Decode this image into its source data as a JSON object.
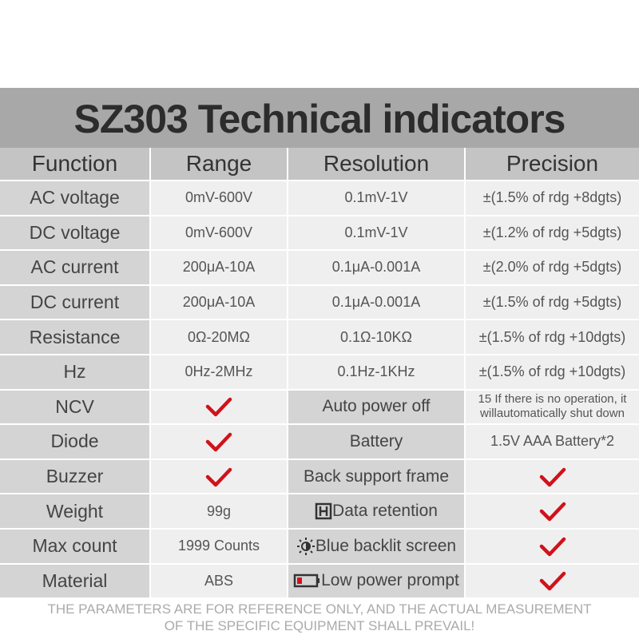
{
  "header": {
    "title": "SZ303 Technical indicators"
  },
  "table": {
    "columns": [
      "Function",
      "Range",
      "Resolution",
      "Precision"
    ],
    "rows": [
      {
        "function": "AC voltage",
        "range": "0mV-600V",
        "resolution": "0.1mV-1V",
        "precision": [
          "±(1.5% of rdg +8dgts)"
        ]
      },
      {
        "function": "DC voltage",
        "range": "0mV-600V",
        "resolution": "0.1mV-1V",
        "precision": [
          "±(1.2% of rdg +5dgts)"
        ]
      },
      {
        "function": "AC current",
        "range": "200μA-10A",
        "resolution": "0.1μA-0.001A",
        "precision": [
          "±(2.0% of rdg +5dgts)"
        ]
      },
      {
        "function": "DC current",
        "range": "200μA-10A",
        "resolution": "0.1μA-0.001A",
        "precision": [
          "±(1.5% of rdg +5dgts)"
        ]
      },
      {
        "function": "Resistance",
        "range": "0Ω-20MΩ",
        "resolution": "0.1Ω-10KΩ",
        "precision": [
          "±(1.5% of rdg +10dgts)"
        ]
      },
      {
        "function": "Hz",
        "range": "0Hz-2MHz",
        "resolution": "0.1Hz-1KHz",
        "precision": [
          "±(1.5% of rdg +10dgts)"
        ]
      },
      {
        "function": "NCV",
        "resolution": "Auto power off",
        "precision": [
          "15 If there is no operation, it",
          "willautomatically shut down"
        ]
      },
      {
        "function": "Diode",
        "resolution": "Battery",
        "precision": [
          "1.5V AAA Battery*2"
        ]
      },
      {
        "function": "Buzzer",
        "resolution": "Back support frame"
      },
      {
        "function": "Weight",
        "range": "99g",
        "resolution": "Data retention"
      },
      {
        "function": "Max count",
        "range": "1999 Counts",
        "resolution": "Blue backlit screen"
      },
      {
        "function": "Material",
        "range": "ABS",
        "resolution": "Low power prompt"
      }
    ]
  },
  "footer": [
    "THE PARAMETERS ARE FOR REFERENCE ONLY, AND THE ACTUAL MEASUREMENT",
    "OF THE SPECIFIC EQUIPMENT SHALL PREVAIL!"
  ]
}
